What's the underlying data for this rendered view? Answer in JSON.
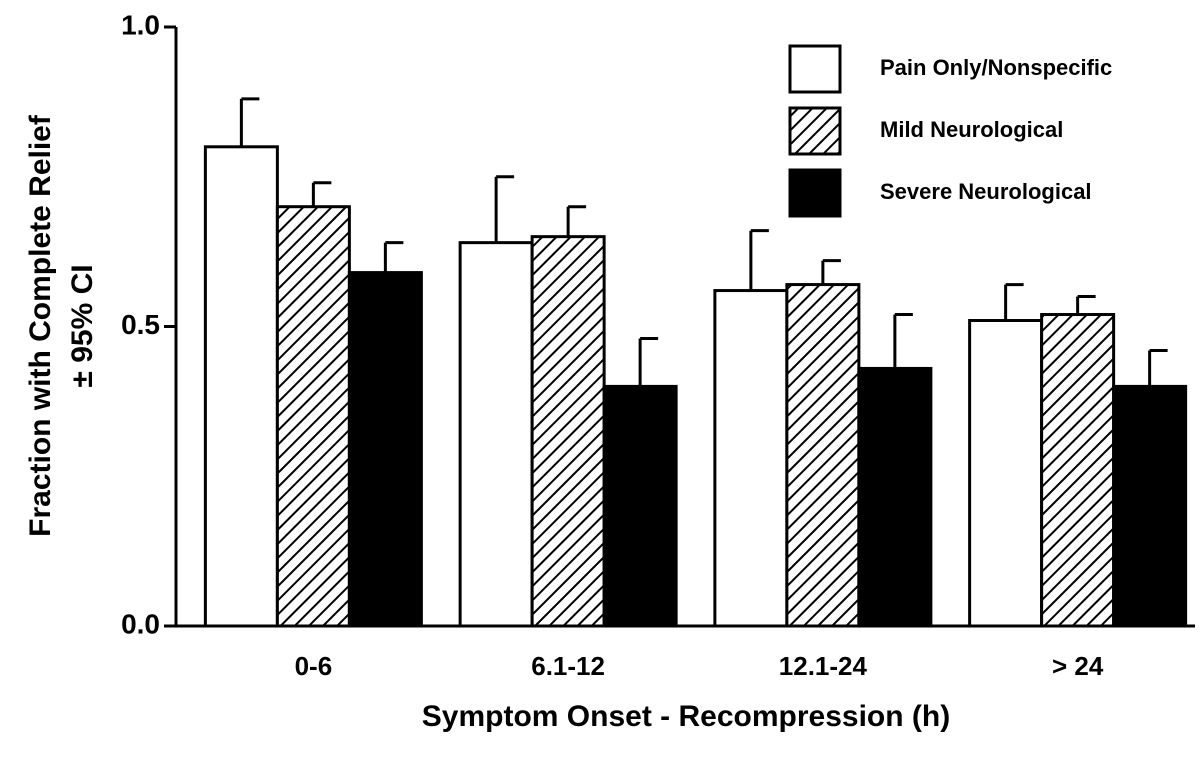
{
  "chart_data": {
    "type": "bar",
    "xlabel": "Symptom Onset - Recompression (h)",
    "ylabel": [
      "Fraction with Complete Relief",
      "± 95% CI"
    ],
    "categories": [
      "0-6",
      "6.1-12",
      "12.1-24",
      "> 24"
    ],
    "series": [
      {
        "name": "Pain Only/Nonspecific",
        "color": "#ffffff",
        "pattern": "none",
        "values": [
          0.8,
          0.64,
          0.56,
          0.51
        ],
        "errors": [
          0.08,
          0.11,
          0.1,
          0.06
        ]
      },
      {
        "name": "Mild Neurological",
        "color": "#ffffff",
        "pattern": "hatch",
        "values": [
          0.7,
          0.65,
          0.57,
          0.52
        ],
        "errors": [
          0.04,
          0.05,
          0.04,
          0.03
        ]
      },
      {
        "name": "Severe Neurological",
        "color": "#000000",
        "pattern": "none",
        "values": [
          0.59,
          0.4,
          0.43,
          0.4
        ],
        "errors": [
          0.05,
          0.08,
          0.09,
          0.06
        ]
      }
    ],
    "ylim": [
      0,
      1
    ],
    "yticks": [
      {
        "value": 0,
        "label": "0.0"
      },
      {
        "value": 0.5,
        "label": "0.5"
      },
      {
        "value": 1,
        "label": "1.0"
      }
    ],
    "legend": "upper right"
  }
}
